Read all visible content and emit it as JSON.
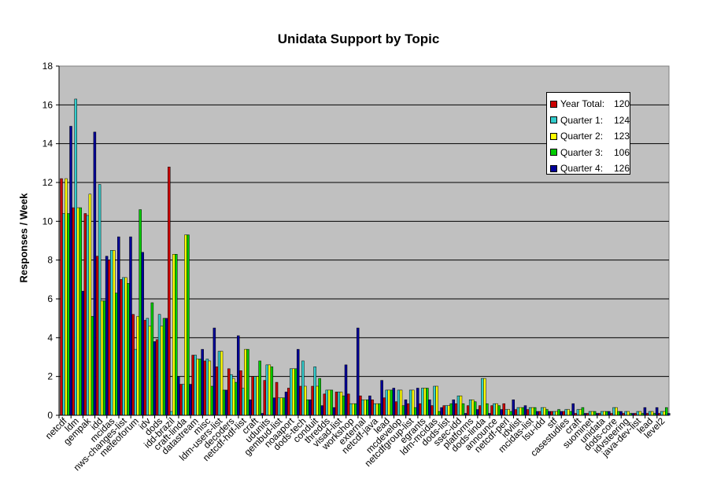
{
  "chart_data": {
    "type": "bar",
    "title": "Unidata Support by Topic",
    "xlabel": "",
    "ylabel": "Responses / Week",
    "ylim": [
      0,
      18
    ],
    "yticks": [
      0,
      2,
      4,
      6,
      8,
      10,
      12,
      14,
      16,
      18
    ],
    "grid": true,
    "legend_position": "top-right",
    "categories": [
      "netcdf",
      "ldm",
      "gempak",
      "idd",
      "mcidas",
      "nws-changes-list",
      "meteoforum",
      "idv",
      "dods",
      "idd-brazil",
      "craft-linda",
      "datastream",
      "misc",
      "ldm-users-list",
      "decoders",
      "netcdf-hdf-list",
      "craft",
      "udunits",
      "gembud-list",
      "noaaport",
      "dods-tech",
      "conduit",
      "thredds",
      "visad-list",
      "workshop",
      "external",
      "netcdf-java",
      "lead",
      "mcdevelop",
      "netcdfgroup-list",
      "egrants",
      "ldm-mcidas",
      "dods-list",
      "ssec-idd",
      "platforms",
      "dods-linda",
      "announce",
      "netcdf-perl",
      "idvlist",
      "mcidas-list",
      "lsu-idd",
      "stf",
      "casestudies",
      "craft",
      "suominet",
      "unidata",
      "dods-core",
      "idvsteering",
      "java-dev-list",
      "lead",
      "level2"
    ],
    "series": [
      {
        "name": "Year Total:",
        "total": "120",
        "color": "#cc0000",
        "values": [
          12.2,
          10.7,
          10.4,
          8.2,
          8.0,
          7.0,
          5.2,
          4.9,
          3.9,
          12.8,
          1.6,
          3.1,
          2.8,
          2.5,
          2.4,
          2.3,
          2.0,
          1.8,
          1.7,
          1.4,
          1.5,
          1.5,
          1.1,
          1.2,
          1.1,
          1.0,
          0.8,
          0.9,
          0.7,
          0.6,
          0.6,
          0.5,
          0.5,
          0.6,
          0.5,
          0.5,
          0.5,
          0.6,
          0.3,
          0.3,
          0.2,
          0.2,
          0.2,
          0.1,
          0.1,
          0.1,
          0.1,
          0.1,
          0.1,
          0.1,
          0.1
        ]
      },
      {
        "name": "Quarter 1:",
        "total": "124",
        "color": "#33cccc",
        "values": [
          10.4,
          16.3,
          10.3,
          11.9,
          8.5,
          7.1,
          3.4,
          5.0,
          5.2,
          0.2,
          1.6,
          3.1,
          2.9,
          3.3,
          2.1,
          1.4,
          2.0,
          2.6,
          0.9,
          2.4,
          2.8,
          2.5,
          1.3,
          1.2,
          0.6,
          0.8,
          0.6,
          1.3,
          1.3,
          1.3,
          1.4,
          1.5,
          0.5,
          1.0,
          0.8,
          1.9,
          0.6,
          0.3,
          0.4,
          0.4,
          0.4,
          0.2,
          0.3,
          0.3,
          0.2,
          0.2,
          0.4,
          0.2,
          0.2,
          0.2,
          0.2
        ]
      },
      {
        "name": "Quarter 2:",
        "total": "123",
        "color": "#ffff00",
        "values": [
          12.2,
          10.7,
          11.4,
          5.9,
          8.5,
          7.1,
          5.1,
          4.6,
          4.6,
          8.3,
          9.3,
          2.9,
          2.8,
          3.3,
          1.9,
          3.4,
          2.0,
          2.6,
          0.9,
          2.4,
          1.5,
          1.5,
          1.3,
          1.2,
          0.6,
          0.8,
          0.6,
          1.3,
          1.3,
          1.3,
          1.4,
          1.5,
          0.5,
          1.0,
          0.8,
          1.9,
          0.6,
          0.3,
          0.4,
          0.4,
          0.4,
          0.2,
          0.3,
          0.3,
          0.2,
          0.2,
          0.4,
          0.2,
          0.2,
          0.2,
          0.2
        ]
      },
      {
        "name": "Quarter 3:",
        "total": "106",
        "color": "#00cc00",
        "values": [
          10.4,
          10.7,
          5.1,
          5.9,
          6.3,
          6.8,
          10.6,
          5.8,
          5.0,
          8.3,
          9.3,
          2.9,
          1.5,
          1.3,
          1.7,
          3.4,
          2.8,
          2.5,
          0.9,
          2.4,
          0.8,
          1.9,
          1.3,
          1.0,
          0.6,
          0.8,
          0.6,
          1.3,
          0.5,
          0.4,
          1.4,
          0.2,
          0.6,
          0.6,
          0.7,
          0.6,
          0.5,
          0.2,
          0.4,
          0.4,
          0.3,
          0.3,
          0.2,
          0.4,
          0.2,
          0.2,
          0.2,
          0.1,
          0.1,
          0.1,
          0.4
        ]
      },
      {
        "name": "Quarter 4:",
        "total": "126",
        "color": "#000099",
        "values": [
          14.9,
          6.4,
          14.6,
          8.2,
          9.2,
          9.2,
          8.4,
          3.8,
          5.0,
          2.0,
          1.6,
          3.4,
          4.5,
          1.3,
          4.1,
          0.8,
          0.1,
          0.9,
          1.2,
          3.4,
          0.8,
          0.5,
          0.4,
          2.6,
          4.5,
          1.0,
          1.8,
          1.4,
          0.8,
          1.4,
          0.8,
          0.4,
          0.8,
          0.1,
          0.3,
          0.1,
          0.3,
          0.8,
          0.5,
          0.2,
          0.2,
          0.2,
          0.6,
          0.1,
          0.1,
          0.2,
          0.2,
          0.1,
          0.4,
          0.4,
          0.1
        ]
      }
    ]
  }
}
